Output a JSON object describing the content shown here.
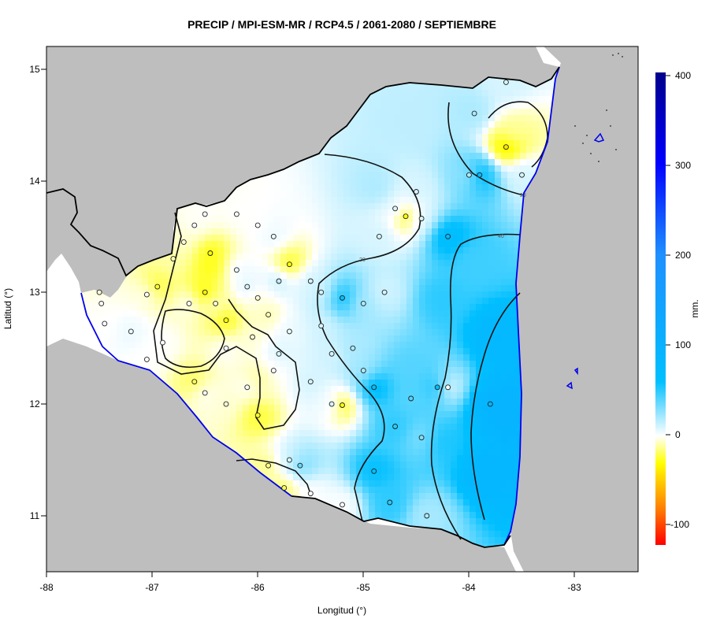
{
  "title": "PRECIP / MPI-ESM-MR / RCP4.5 / 2061-2080 / SEPTIEMBRE",
  "x_axis": {
    "label": "Longitud (°)",
    "ticks": [
      "-88",
      "-87",
      "-86",
      "-85",
      "-84",
      "-83"
    ]
  },
  "y_axis": {
    "label": "Latitud (°)",
    "ticks": [
      "15",
      "14",
      "13",
      "12",
      "11"
    ]
  },
  "legend": {
    "unit": "mm.",
    "ticks": [
      "400",
      "300",
      "200",
      "100",
      "0",
      "-100"
    ]
  },
  "contour_labels": [
    "20",
    "40",
    "20"
  ],
  "colors": {
    "land_outside": "#bebebe",
    "ocean": "#ffffff",
    "coastline": "#0000ee",
    "border": "#000000"
  },
  "chart_data": {
    "type": "heatmap",
    "xlim": [
      -88,
      -82.4
    ],
    "ylim": [
      10.5,
      15.2
    ],
    "value_range": [
      -120,
      400
    ],
    "colorscale": [
      {
        "value": -120,
        "color": "#ff0000"
      },
      {
        "value": -80,
        "color": "#ff7f00"
      },
      {
        "value": -30,
        "color": "#ffff00"
      },
      {
        "value": 0,
        "color": "#ffffff"
      },
      {
        "value": 60,
        "color": "#00bfff"
      },
      {
        "value": 200,
        "color": "#1e90ff"
      },
      {
        "value": 300,
        "color": "#0000ff"
      },
      {
        "value": 400,
        "color": "#00008b"
      }
    ],
    "contour_levels": [
      0,
      20,
      40
    ],
    "stations": [
      {
        "lon": -87.5,
        "lat": 13.0,
        "v": -5
      },
      {
        "lon": -87.48,
        "lat": 12.9,
        "v": 0
      },
      {
        "lon": -87.45,
        "lat": 12.72,
        "v": 0
      },
      {
        "lon": -87.2,
        "lat": 12.65,
        "v": 5
      },
      {
        "lon": -87.05,
        "lat": 12.98,
        "v": 0
      },
      {
        "lon": -86.95,
        "lat": 13.05,
        "v": -25
      },
      {
        "lon": -86.8,
        "lat": 13.3,
        "v": -10
      },
      {
        "lon": -86.7,
        "lat": 13.45,
        "v": -5
      },
      {
        "lon": -86.6,
        "lat": 13.6,
        "v": 0
      },
      {
        "lon": -86.5,
        "lat": 13.7,
        "v": 0
      },
      {
        "lon": -86.45,
        "lat": 13.35,
        "v": -30
      },
      {
        "lon": -86.5,
        "lat": 13.0,
        "v": -35
      },
      {
        "lon": -86.4,
        "lat": 12.9,
        "v": -5
      },
      {
        "lon": -86.3,
        "lat": 12.75,
        "v": -30
      },
      {
        "lon": -86.2,
        "lat": 13.2,
        "v": 5
      },
      {
        "lon": -86.1,
        "lat": 13.05,
        "v": 10
      },
      {
        "lon": -86.0,
        "lat": 12.95,
        "v": -5
      },
      {
        "lon": -85.9,
        "lat": 12.8,
        "v": -10
      },
      {
        "lon": -85.8,
        "lat": 13.1,
        "v": 15
      },
      {
        "lon": -85.7,
        "lat": 13.25,
        "v": -30
      },
      {
        "lon": -86.3,
        "lat": 12.5,
        "v": 0
      },
      {
        "lon": -86.5,
        "lat": 12.1,
        "v": 0
      },
      {
        "lon": -86.3,
        "lat": 12.0,
        "v": -5
      },
      {
        "lon": -86.0,
        "lat": 11.9,
        "v": -25
      },
      {
        "lon": -86.1,
        "lat": 12.15,
        "v": 0
      },
      {
        "lon": -85.7,
        "lat": 11.5,
        "v": 10
      },
      {
        "lon": -85.6,
        "lat": 11.45,
        "v": 35
      },
      {
        "lon": -85.9,
        "lat": 11.45,
        "v": -15
      },
      {
        "lon": -85.75,
        "lat": 11.25,
        "v": -20
      },
      {
        "lon": -85.5,
        "lat": 11.2,
        "v": 0
      },
      {
        "lon": -85.2,
        "lat": 11.1,
        "v": 0
      },
      {
        "lon": -84.9,
        "lat": 11.4,
        "v": 60
      },
      {
        "lon": -84.75,
        "lat": 11.12,
        "v": 50
      },
      {
        "lon": -84.4,
        "lat": 11.0,
        "v": 20
      },
      {
        "lon": -84.45,
        "lat": 11.7,
        "v": 30
      },
      {
        "lon": -84.7,
        "lat": 11.8,
        "v": 50
      },
      {
        "lon": -84.55,
        "lat": 12.05,
        "v": 40
      },
      {
        "lon": -84.3,
        "lat": 12.15,
        "v": 60
      },
      {
        "lon": -84.2,
        "lat": 12.15,
        "v": 0
      },
      {
        "lon": -84.9,
        "lat": 12.15,
        "v": 70
      },
      {
        "lon": -85.0,
        "lat": 12.3,
        "v": 20
      },
      {
        "lon": -85.1,
        "lat": 12.5,
        "v": 20
      },
      {
        "lon": -85.0,
        "lat": 12.9,
        "v": 20
      },
      {
        "lon": -85.2,
        "lat": 12.95,
        "v": 60
      },
      {
        "lon": -85.4,
        "lat": 13.0,
        "v": 10
      },
      {
        "lon": -85.5,
        "lat": 13.1,
        "v": 10
      },
      {
        "lon": -85.4,
        "lat": 12.7,
        "v": 10
      },
      {
        "lon": -85.3,
        "lat": 12.45,
        "v": 10
      },
      {
        "lon": -85.5,
        "lat": 12.2,
        "v": 10
      },
      {
        "lon": -85.2,
        "lat": 11.99,
        "v": -30
      },
      {
        "lon": -85.3,
        "lat": 12.0,
        "v": 10
      },
      {
        "lon": -84.8,
        "lat": 13.0,
        "v": 10
      },
      {
        "lon": -84.85,
        "lat": 13.5,
        "v": 10
      },
      {
        "lon": -84.7,
        "lat": 13.75,
        "v": 10
      },
      {
        "lon": -84.6,
        "lat": 13.68,
        "v": -30
      },
      {
        "lon": -84.45,
        "lat": 13.66,
        "v": 10
      },
      {
        "lon": -84.5,
        "lat": 13.9,
        "v": 10
      },
      {
        "lon": -84.2,
        "lat": 13.5,
        "v": 70
      },
      {
        "lon": -84.0,
        "lat": 14.05,
        "v": 20
      },
      {
        "lon": -83.9,
        "lat": 14.05,
        "v": 70
      },
      {
        "lon": -83.95,
        "lat": 14.6,
        "v": 20
      },
      {
        "lon": -83.5,
        "lat": 14.05,
        "v": 10
      },
      {
        "lon": -83.65,
        "lat": 14.3,
        "v": -40
      },
      {
        "lon": -83.65,
        "lat": 14.88,
        "v": 10
      },
      {
        "lon": -83.8,
        "lat": 12.0,
        "v": 90
      },
      {
        "lon": -86.2,
        "lat": 13.7,
        "v": 0
      },
      {
        "lon": -86.0,
        "lat": 13.6,
        "v": 0
      },
      {
        "lon": -85.85,
        "lat": 13.5,
        "v": 5
      },
      {
        "lon": -85.7,
        "lat": 12.65,
        "v": 5
      },
      {
        "lon": -85.8,
        "lat": 12.45,
        "v": 10
      },
      {
        "lon": -86.6,
        "lat": 12.2,
        "v": -20
      },
      {
        "lon": -86.9,
        "lat": 12.55,
        "v": 0
      },
      {
        "lon": -86.65,
        "lat": 12.9,
        "v": 0
      },
      {
        "lon": -87.05,
        "lat": 12.4,
        "v": 0
      },
      {
        "lon": -86.05,
        "lat": 12.6,
        "v": -5
      },
      {
        "lon": -85.85,
        "lat": 12.3,
        "v": 0
      }
    ]
  }
}
